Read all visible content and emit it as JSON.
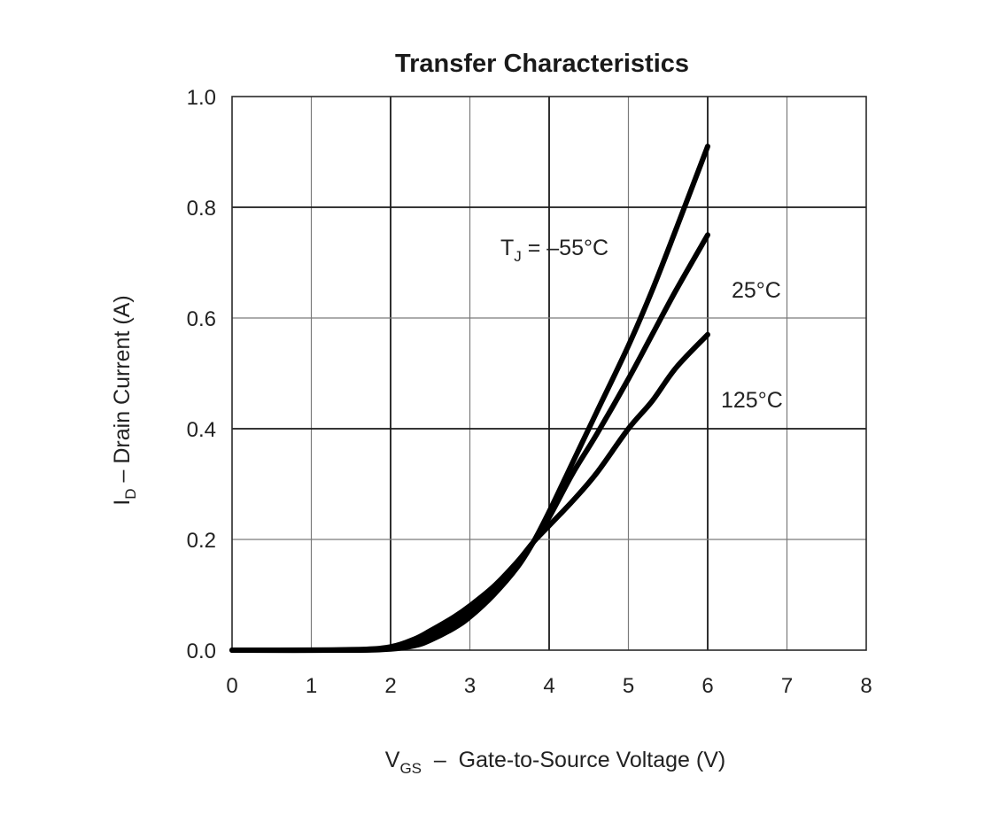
{
  "chart_data": {
    "type": "line",
    "title": "Transfer Characteristics",
    "xlabel": {
      "main": "V",
      "sub": "GS",
      "rest": "  –  Gate-to-Source Voltage (V)"
    },
    "ylabel": {
      "main": "I",
      "sub": "D",
      "rest": " – Drain Current (A)"
    },
    "xlim": [
      0,
      8
    ],
    "ylim": [
      0,
      1.0
    ],
    "x_ticks": [
      "0",
      "1",
      "2",
      "3",
      "4",
      "5",
      "6",
      "7",
      "8"
    ],
    "y_ticks": [
      "0.0",
      "0.2",
      "0.4",
      "0.6",
      "0.8",
      "1.0"
    ],
    "grid": true,
    "series": [
      {
        "label_main": "T",
        "label_sub": "J",
        "label_rest": " = –55°C",
        "x": [
          0,
          1.5,
          2.0,
          2.3,
          2.5,
          2.8,
          3.0,
          3.3,
          3.6,
          3.8,
          4.0,
          4.3,
          4.6,
          5.0,
          5.3,
          5.6,
          6.0
        ],
        "y": [
          0,
          0,
          0.002,
          0.008,
          0.018,
          0.04,
          0.06,
          0.1,
          0.15,
          0.195,
          0.25,
          0.34,
          0.43,
          0.55,
          0.65,
          0.76,
          0.91
        ]
      },
      {
        "label_main": "25°C",
        "label_sub": "",
        "label_rest": "",
        "x": [
          0,
          1.5,
          2.0,
          2.3,
          2.5,
          2.8,
          3.0,
          3.3,
          3.6,
          3.8,
          4.0,
          4.3,
          4.6,
          5.0,
          5.3,
          5.6,
          6.0
        ],
        "y": [
          0,
          0,
          0.004,
          0.015,
          0.027,
          0.05,
          0.07,
          0.105,
          0.155,
          0.195,
          0.24,
          0.32,
          0.39,
          0.49,
          0.57,
          0.65,
          0.75
        ]
      },
      {
        "label_main": "125°C",
        "label_sub": "",
        "label_rest": "",
        "x": [
          0,
          1.5,
          2.0,
          2.3,
          2.5,
          2.8,
          3.0,
          3.3,
          3.6,
          3.8,
          4.0,
          4.3,
          4.6,
          5.0,
          5.3,
          5.6,
          6.0
        ],
        "y": [
          0,
          0.001,
          0.006,
          0.02,
          0.035,
          0.06,
          0.08,
          0.115,
          0.16,
          0.195,
          0.225,
          0.27,
          0.32,
          0.4,
          0.45,
          0.51,
          0.57
        ]
      }
    ]
  }
}
